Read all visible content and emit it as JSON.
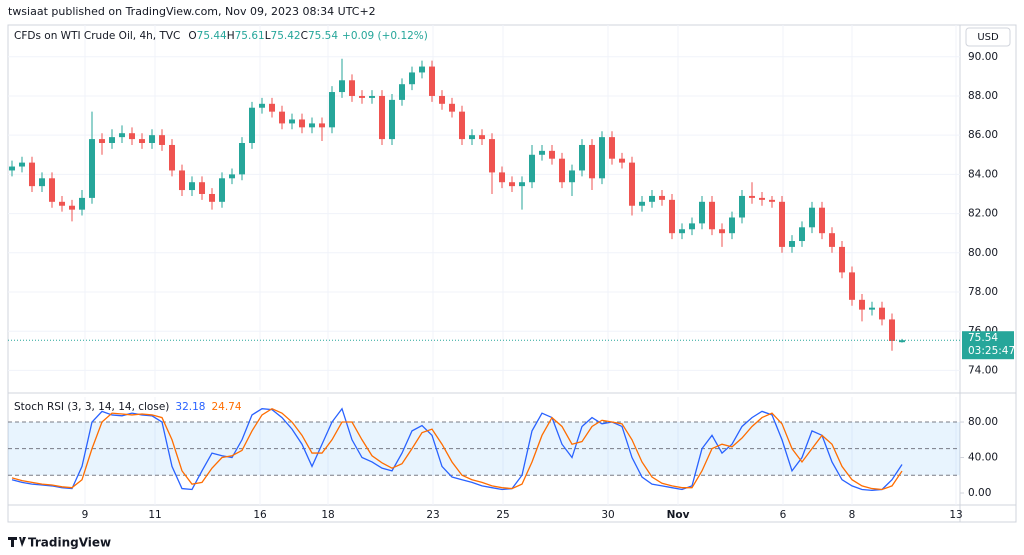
{
  "header": {
    "published": "twsiaat published on TradingView.com, Nov 09, 2023 08:34 UTC+2",
    "currency": "USD",
    "countdown": "03:25:47",
    "footer": "TradingView"
  },
  "chart_data": [
    {
      "type": "candlestick",
      "title": "CFDs on WTI Crude Oil, 4h, TVC",
      "ohlc_letters": [
        "O",
        "H",
        "L",
        "C"
      ],
      "change_label": "+0.09 (+0.12%)",
      "up_color": "#26a69a",
      "down_color": "#ef5350",
      "open": [
        84.2,
        84.4,
        84.6,
        83.4,
        83.8,
        82.6,
        82.4,
        82.2,
        82.8,
        85.8,
        85.6,
        85.9,
        86.1,
        85.8,
        85.6,
        86.0,
        85.5,
        84.2,
        83.2,
        83.6,
        83.0,
        82.6,
        83.8,
        84.0,
        85.6,
        87.4,
        87.6,
        87.2,
        86.6,
        86.8,
        86.4,
        86.6,
        86.4,
        88.2,
        88.8,
        88.0,
        87.9,
        88.0,
        85.8,
        87.8,
        88.6,
        89.2,
        89.5,
        88.0,
        87.6,
        87.2,
        85.8,
        86.0,
        85.8,
        84.1,
        83.6,
        83.4,
        83.6,
        85.0,
        85.2,
        84.8,
        83.6,
        84.2,
        85.5,
        83.8,
        85.9,
        84.8,
        84.6,
        82.4,
        82.6,
        82.9,
        82.7,
        81.0,
        81.2,
        81.5,
        82.6,
        81.2,
        81.0,
        81.8,
        82.9,
        82.8,
        82.7,
        82.6,
        80.3,
        80.6,
        81.3,
        82.3,
        81.0,
        80.3,
        79.0,
        77.6,
        77.1,
        77.2,
        76.6,
        75.44
      ],
      "high": [
        84.7,
        84.9,
        84.9,
        84.1,
        84.1,
        82.9,
        82.7,
        83.2,
        87.2,
        86.1,
        86.3,
        86.5,
        86.4,
        86.1,
        86.3,
        86.3,
        85.8,
        84.5,
        83.9,
        83.9,
        83.3,
        84.1,
        84.3,
        85.9,
        87.7,
        87.9,
        87.9,
        87.5,
        87.1,
        87.1,
        86.9,
        86.9,
        88.5,
        89.9,
        89.1,
        88.3,
        88.3,
        88.3,
        88.1,
        88.9,
        89.5,
        89.8,
        89.8,
        88.3,
        87.9,
        87.5,
        86.3,
        86.3,
        86.1,
        84.4,
        83.9,
        83.9,
        85.5,
        85.5,
        85.5,
        85.1,
        84.5,
        85.8,
        85.8,
        86.2,
        86.2,
        85.1,
        84.9,
        82.9,
        83.2,
        83.2,
        83.0,
        81.5,
        81.8,
        82.9,
        82.9,
        81.5,
        82.1,
        83.2,
        83.6,
        83.1,
        82.9,
        82.9,
        80.9,
        81.6,
        82.6,
        82.6,
        81.3,
        80.6,
        79.3,
        77.9,
        77.5,
        77.5,
        76.9,
        75.61
      ],
      "low": [
        83.9,
        84.1,
        83.1,
        83.1,
        82.3,
        82.1,
        81.6,
        81.9,
        82.5,
        85.0,
        85.3,
        85.6,
        85.5,
        85.3,
        85.3,
        85.2,
        83.9,
        82.9,
        82.9,
        82.7,
        82.2,
        82.3,
        83.5,
        83.7,
        85.3,
        87.1,
        86.9,
        86.3,
        86.3,
        86.1,
        86.1,
        85.7,
        86.1,
        87.9,
        87.7,
        87.6,
        87.6,
        85.5,
        85.5,
        87.5,
        88.3,
        88.9,
        87.7,
        87.3,
        86.9,
        85.5,
        85.5,
        85.5,
        83.0,
        83.3,
        83.1,
        82.2,
        83.3,
        84.7,
        84.5,
        83.3,
        82.9,
        83.9,
        83.2,
        83.5,
        84.5,
        84.3,
        81.9,
        82.1,
        82.3,
        82.4,
        80.7,
        80.7,
        80.9,
        81.2,
        80.9,
        80.3,
        80.7,
        81.5,
        82.5,
        82.4,
        82.3,
        80.0,
        80.0,
        80.3,
        81.0,
        80.7,
        80.0,
        78.7,
        77.3,
        76.5,
        76.8,
        76.3,
        75.0,
        75.42
      ],
      "close": [
        84.4,
        84.6,
        83.4,
        83.8,
        82.6,
        82.4,
        82.2,
        82.8,
        85.8,
        85.6,
        85.9,
        86.1,
        85.8,
        85.6,
        86.0,
        85.5,
        84.2,
        83.2,
        83.6,
        83.0,
        82.6,
        83.8,
        84.0,
        85.6,
        87.4,
        87.6,
        87.2,
        86.6,
        86.8,
        86.4,
        86.6,
        86.4,
        88.2,
        88.8,
        88.0,
        87.9,
        88.0,
        85.8,
        87.8,
        88.6,
        89.2,
        89.5,
        88.0,
        87.6,
        87.2,
        85.8,
        86.0,
        85.8,
        84.1,
        83.6,
        83.4,
        83.6,
        85.0,
        85.2,
        84.8,
        83.6,
        84.2,
        85.5,
        83.8,
        85.9,
        84.8,
        84.6,
        82.4,
        82.6,
        82.9,
        82.7,
        81.0,
        81.2,
        81.5,
        82.6,
        81.2,
        81.0,
        81.8,
        82.9,
        82.8,
        82.7,
        82.6,
        80.3,
        80.6,
        81.3,
        82.3,
        81.0,
        80.3,
        79.0,
        77.6,
        77.1,
        77.2,
        76.6,
        75.5,
        75.54
      ],
      "ylim": [
        73.0,
        90.6
      ],
      "yticks": [
        {
          "value": 74,
          "label": "74.00"
        },
        {
          "value": 76,
          "label": "76.00"
        },
        {
          "value": 78,
          "label": "78.00"
        },
        {
          "value": 80,
          "label": "80.00"
        },
        {
          "value": 82,
          "label": "82.00"
        },
        {
          "value": 84,
          "label": "84.00"
        },
        {
          "value": 86,
          "label": "86.00"
        },
        {
          "value": 88,
          "label": "88.00"
        },
        {
          "value": 90,
          "label": "90.00"
        }
      ],
      "xticks": [
        {
          "value": 7.3,
          "label": "9"
        },
        {
          "value": 14.3,
          "label": "11"
        },
        {
          "value": 24.8,
          "label": "16"
        },
        {
          "value": 31.6,
          "label": "18"
        },
        {
          "value": 42.1,
          "label": "23"
        },
        {
          "value": 49.1,
          "label": "25"
        },
        {
          "value": 59.6,
          "label": "30"
        },
        {
          "value": 66.6,
          "label": "Nov"
        },
        {
          "value": 77.1,
          "label": "6"
        },
        {
          "value": 84.0,
          "label": "8"
        },
        {
          "value": 94.4,
          "label": "13"
        }
      ],
      "grid": true
    },
    {
      "type": "line",
      "title": "Stoch RSI (3, 3, 14, 14, close)",
      "series": [
        {
          "name": "K",
          "color": "#2962ff",
          "values": [
            15,
            12,
            10,
            9,
            8,
            6,
            5,
            30,
            80,
            92,
            88,
            87,
            90,
            88,
            87,
            80,
            30,
            5,
            4,
            25,
            45,
            42,
            40,
            60,
            88,
            95,
            94,
            85,
            72,
            55,
            30,
            55,
            80,
            95,
            60,
            40,
            35,
            28,
            25,
            45,
            70,
            76,
            65,
            30,
            18,
            15,
            12,
            8,
            6,
            4,
            5,
            20,
            70,
            90,
            85,
            55,
            40,
            75,
            85,
            78,
            80,
            75,
            40,
            18,
            10,
            8,
            6,
            4,
            8,
            50,
            65,
            45,
            55,
            75,
            85,
            92,
            88,
            60,
            25,
            40,
            70,
            65,
            35,
            15,
            8,
            4,
            3,
            4,
            15,
            32.18
          ]
        },
        {
          "name": "D",
          "color": "#ff6d00",
          "values": [
            17,
            14,
            12,
            10,
            9,
            7,
            6,
            15,
            50,
            80,
            90,
            89,
            88,
            89,
            88,
            85,
            60,
            25,
            10,
            12,
            28,
            40,
            42,
            48,
            70,
            88,
            95,
            90,
            80,
            65,
            45,
            45,
            60,
            80,
            80,
            60,
            42,
            34,
            28,
            33,
            50,
            68,
            72,
            55,
            35,
            20,
            15,
            12,
            8,
            6,
            5,
            10,
            35,
            65,
            85,
            75,
            55,
            58,
            75,
            82,
            80,
            78,
            60,
            35,
            18,
            11,
            8,
            6,
            6,
            25,
            50,
            55,
            52,
            62,
            75,
            85,
            90,
            78,
            50,
            35,
            50,
            65,
            55,
            30,
            15,
            8,
            5,
            4,
            8,
            24.74
          ]
        }
      ],
      "ylim": [
        -13.5,
        108.2
      ],
      "yticks": [
        {
          "value": 0,
          "label": "0.00"
        },
        {
          "value": 40,
          "label": "40.00"
        },
        {
          "value": 80,
          "label": "80.00"
        }
      ],
      "band": [
        20,
        80
      ],
      "band_lines": [
        20,
        50,
        80
      ],
      "band_color": "#2196f3"
    }
  ]
}
